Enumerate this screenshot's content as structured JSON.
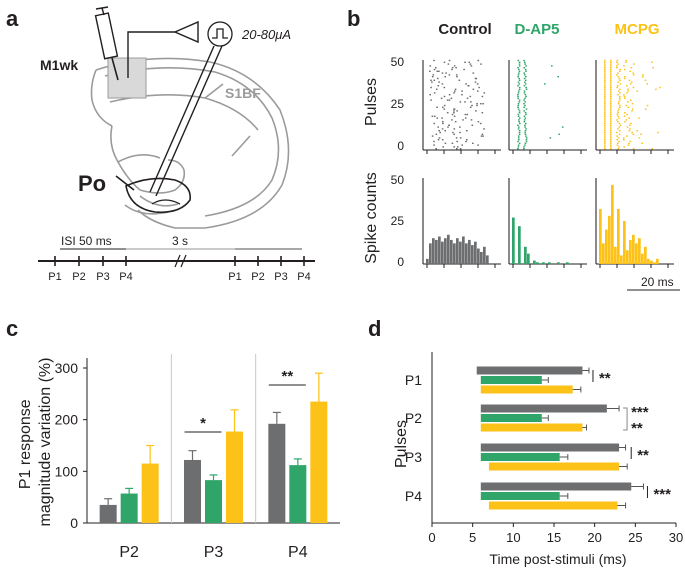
{
  "panel_a": {
    "letter": "a",
    "stim_label": "20-80μA",
    "region_m1": "M1wk",
    "region_s1bf": "S1BF",
    "region_po": "Po",
    "isi_label": "ISI 50 ms",
    "gap_label": "3 s",
    "pulse_labels": [
      "P1",
      "P2",
      "P3",
      "P4"
    ]
  },
  "panel_b": {
    "letter": "b",
    "conditions": [
      "Control",
      "D-AP5",
      "MCPG"
    ],
    "ylabel_top": "Pulses",
    "ylabel_bottom": "Spike counts",
    "raster_ticks": [
      "50",
      "25",
      "0"
    ],
    "hist_ticks": [
      "50",
      "25",
      "0"
    ],
    "scale_label": "20 ms",
    "hist_heights": {
      "Control": [
        3,
        12,
        15,
        14,
        16,
        13,
        15,
        17,
        14,
        12,
        15,
        13,
        16,
        12,
        14,
        11,
        13,
        9,
        7,
        10,
        5
      ],
      "D-AP5": [
        27,
        0,
        22,
        0,
        10,
        6,
        0,
        2,
        1,
        0,
        1,
        0,
        1,
        0,
        0,
        1,
        0,
        0,
        1,
        0,
        0
      ],
      "MCPG": [
        32,
        12,
        20,
        28,
        46,
        10,
        32,
        5,
        25,
        8,
        14,
        17,
        12,
        15,
        6,
        10,
        3,
        2,
        1,
        3,
        0
      ]
    }
  },
  "panel_c": {
    "letter": "c",
    "chart_data": {
      "type": "bar",
      "title": "",
      "ylabel": "P1 response magnitude variation (%)",
      "categories": [
        "P2",
        "P3",
        "P4"
      ],
      "ylim": [
        0,
        300
      ],
      "yticks": [
        "0",
        "100",
        "200",
        "300"
      ],
      "series": [
        {
          "name": "Control",
          "values": [
            35,
            122,
            192
          ],
          "errors": [
            12,
            18,
            22
          ]
        },
        {
          "name": "D-AP5",
          "values": [
            57,
            83,
            112
          ],
          "errors": [
            10,
            10,
            12
          ]
        },
        {
          "name": "MCPG",
          "values": [
            115,
            177,
            235
          ],
          "errors": [
            35,
            42,
            55
          ]
        }
      ],
      "significance": [
        {
          "category": "P3",
          "label": "*"
        },
        {
          "category": "P4",
          "label": "**"
        }
      ]
    }
  },
  "panel_d": {
    "letter": "d",
    "chart_data": {
      "type": "bar",
      "orientation": "horizontal",
      "ylabel": "Pulses",
      "xlabel": "Time post-stimuli (ms)",
      "categories": [
        "P1",
        "P2",
        "P3",
        "P4"
      ],
      "xlim": [
        0,
        30
      ],
      "xticks": [
        "0",
        "5",
        "10",
        "15",
        "20",
        "25",
        "30"
      ],
      "series": [
        {
          "name": "Control",
          "start": [
            5.5,
            6,
            6,
            6
          ],
          "values": [
            18.5,
            21.5,
            23,
            24.5
          ],
          "errors": [
            0.8,
            1.5,
            0.8,
            1.5
          ]
        },
        {
          "name": "D-AP5",
          "start": [
            6,
            6,
            6,
            6
          ],
          "values": [
            13.5,
            13.5,
            15.7,
            15.7
          ],
          "errors": [
            0.8,
            0.8,
            1,
            1
          ]
        },
        {
          "name": "MCPG",
          "start": [
            6,
            6,
            7,
            7
          ],
          "values": [
            17.3,
            18.5,
            23,
            22.8
          ],
          "errors": [
            1,
            0.5,
            1,
            1
          ]
        }
      ],
      "significance": [
        {
          "category": "P1",
          "label": "**"
        },
        {
          "category": "P2",
          "label": "***"
        },
        {
          "category": "P2",
          "label": "**"
        },
        {
          "category": "P3",
          "label": "**"
        },
        {
          "category": "P4",
          "label": "***"
        }
      ]
    }
  },
  "colors": {
    "control": "#6d6e70",
    "dap5": "#2fa56a",
    "mcpg": "#fdc218",
    "axis": "#231f20",
    "brain": "#9b9b9b"
  }
}
